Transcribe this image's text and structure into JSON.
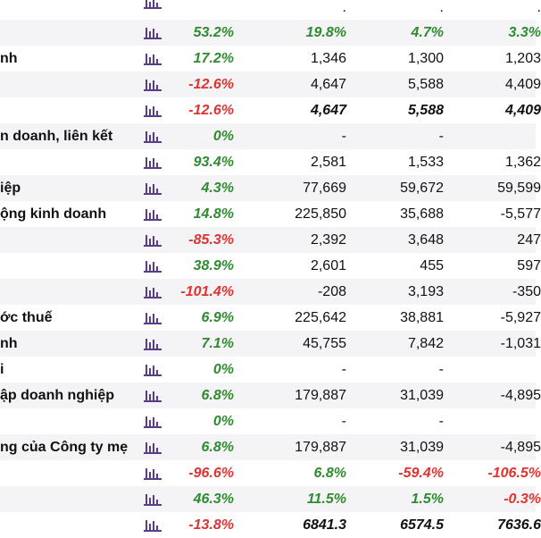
{
  "colors": {
    "positive": "#2e8b2e",
    "negative": "#e0322f",
    "icon": "#5a3d8a",
    "row_alt": "#f4f4f6"
  },
  "icon_name": "bar-chart-icon",
  "top_partial": {
    "label": "",
    "yoy": "",
    "y1": ".",
    "y2": ".",
    "y3": "."
  },
  "rows": [
    {
      "label": "",
      "yoy": "53.2%",
      "y1": "19.8%",
      "y2": "4.7%",
      "y3": "3.3%"
    },
    {
      "label": "nh",
      "yoy": "17.2%",
      "y1": "1,346",
      "y2": "1,300",
      "y3": "1,203"
    },
    {
      "label": "",
      "yoy": "-12.6%",
      "y1": "4,647",
      "y2": "5,588",
      "y3": "4,409"
    },
    {
      "label": "",
      "yoy": "-12.6%",
      "y1": "4,647",
      "y2": "5,588",
      "y3": "4,409"
    },
    {
      "label": "n doanh, liên kết",
      "yoy": "0%",
      "y1": "-",
      "y2": "-",
      "y3": ""
    },
    {
      "label": "",
      "yoy": "93.4%",
      "y1": "2,581",
      "y2": "1,533",
      "y3": "1,362"
    },
    {
      "label": "iệp",
      "yoy": "4.3%",
      "y1": "77,669",
      "y2": "59,672",
      "y3": "59,599"
    },
    {
      "label": "ộng kinh doanh",
      "yoy": "14.8%",
      "y1": "225,850",
      "y2": "35,688",
      "y3": "-5,577"
    },
    {
      "label": "",
      "yoy": "-85.3%",
      "y1": "2,392",
      "y2": "3,648",
      "y3": "247"
    },
    {
      "label": "",
      "yoy": "38.9%",
      "y1": "2,601",
      "y2": "455",
      "y3": "597"
    },
    {
      "label": "",
      "yoy": "-101.4%",
      "y1": "-208",
      "y2": "3,193",
      "y3": "-350"
    },
    {
      "label": "ớc thuế",
      "yoy": "6.9%",
      "y1": "225,642",
      "y2": "38,881",
      "y3": "-5,927"
    },
    {
      "label": "nh",
      "yoy": "7.1%",
      "y1": "45,755",
      "y2": "7,842",
      "y3": "-1,031"
    },
    {
      "label": "i",
      "yoy": "0%",
      "y1": "-",
      "y2": "-",
      "y3": ""
    },
    {
      "label": "ập doanh nghiệp",
      "yoy": "6.8%",
      "y1": "179,887",
      "y2": "31,039",
      "y3": "-4,895"
    },
    {
      "label": "",
      "yoy": "0%",
      "y1": "-",
      "y2": "-",
      "y3": ""
    },
    {
      "label": "ng của Công ty mẹ",
      "yoy": "6.8%",
      "y1": "179,887",
      "y2": "31,039",
      "y3": "-4,895"
    },
    {
      "label": "",
      "yoy": "-96.6%",
      "y1": "6.8%",
      "y2": "-59.4%",
      "y3": "-106.5%"
    },
    {
      "label": "",
      "yoy": "46.3%",
      "y1": "11.5%",
      "y2": "1.5%",
      "y3": "-0.3%"
    },
    {
      "label": "",
      "yoy": "-13.8%",
      "y1": "6841.3",
      "y2": "6574.5",
      "y3": "7636.6"
    }
  ]
}
